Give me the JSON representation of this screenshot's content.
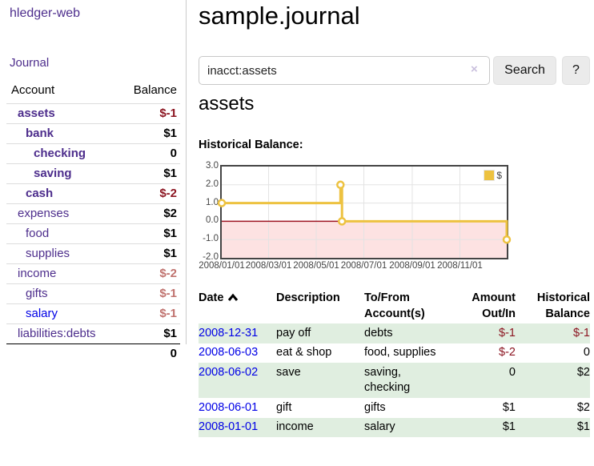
{
  "app": {
    "title": "hledger-web"
  },
  "sidebar": {
    "journal_link": "Journal",
    "accounts": {
      "header_account": "Account",
      "header_balance": "Balance",
      "rows": [
        {
          "name": "assets",
          "balance": "$-1",
          "indent": 0,
          "bold": true,
          "tone": "neg-strong",
          "link": "purple"
        },
        {
          "name": "bank",
          "balance": "$1",
          "indent": 1,
          "bold": true,
          "tone": null,
          "link": "purple"
        },
        {
          "name": "checking",
          "balance": "0",
          "indent": 2,
          "bold": true,
          "tone": null,
          "link": "purple"
        },
        {
          "name": "saving",
          "balance": "$1",
          "indent": 2,
          "bold": true,
          "tone": null,
          "link": "purple"
        },
        {
          "name": "cash",
          "balance": "$-2",
          "indent": 1,
          "bold": true,
          "tone": "neg-strong",
          "link": "purple"
        },
        {
          "name": "expenses",
          "balance": "$2",
          "indent": 0,
          "bold": false,
          "tone": null,
          "link": "purple"
        },
        {
          "name": "food",
          "balance": "$1",
          "indent": 1,
          "bold": false,
          "tone": null,
          "link": "purple"
        },
        {
          "name": "supplies",
          "balance": "$1",
          "indent": 1,
          "bold": false,
          "tone": null,
          "link": "purple"
        },
        {
          "name": "income",
          "balance": "$-2",
          "indent": 0,
          "bold": false,
          "tone": "neg-muted",
          "link": "purple"
        },
        {
          "name": "gifts",
          "balance": "$-1",
          "indent": 1,
          "bold": false,
          "tone": "neg-muted",
          "link": "purple"
        },
        {
          "name": "salary",
          "balance": "$-1",
          "indent": 1,
          "bold": false,
          "tone": "neg-muted",
          "link": "blue"
        },
        {
          "name": "liabilities:debts",
          "balance": "$1",
          "indent": 0,
          "bold": false,
          "tone": null,
          "link": "purple"
        }
      ],
      "total": "0"
    }
  },
  "main": {
    "title": "sample.journal",
    "search": {
      "value": "inacct:assets",
      "clear_icon": "×",
      "search_button": "Search",
      "help_button": "?"
    },
    "heading": "assets",
    "chart_title": "Historical Balance:"
  },
  "chart_data": {
    "type": "line",
    "step": true,
    "title": "Historical Balance",
    "xlabel": "",
    "ylabel": "",
    "x_domain": [
      "2008-01-01",
      "2008-12-31"
    ],
    "ylim": [
      -2,
      3
    ],
    "grid": true,
    "legend_position": "top-right",
    "negative_region_color": "#fde2e2",
    "zero_line_color": "#9e1522",
    "y_ticks": [
      {
        "v": 3,
        "label": "3.0"
      },
      {
        "v": 2,
        "label": "2.0"
      },
      {
        "v": 1,
        "label": "1.0"
      },
      {
        "v": 0,
        "label": "0.0"
      },
      {
        "v": -1,
        "label": "-1.0"
      },
      {
        "v": -2,
        "label": "-2.0"
      }
    ],
    "x_ticks": [
      {
        "date": "2008-01-01",
        "label": "2008/01/01"
      },
      {
        "date": "2008-03-01",
        "label": "2008/03/01"
      },
      {
        "date": "2008-05-01",
        "label": "2008/05/01"
      },
      {
        "date": "2008-07-01",
        "label": "2008/07/01"
      },
      {
        "date": "2008-09-01",
        "label": "2008/09/01"
      },
      {
        "date": "2008-11-01",
        "label": "2008/11/01"
      }
    ],
    "series": [
      {
        "name": "$",
        "color": "#edc240",
        "points": [
          {
            "date": "2008-01-01",
            "value": 1
          },
          {
            "date": "2008-06-01",
            "value": 2
          },
          {
            "date": "2008-06-03",
            "value": 0
          },
          {
            "date": "2008-12-31",
            "value": -1
          }
        ]
      }
    ]
  },
  "register": {
    "sort": {
      "column": "Date",
      "direction": "ascending"
    },
    "columns": [
      {
        "line1": "Date",
        "line2": ""
      },
      {
        "line1": "Description",
        "line2": ""
      },
      {
        "line1": "To/From",
        "line2": "Account(s)"
      },
      {
        "line1": "Amount",
        "line2": "Out/In"
      },
      {
        "line1": "Historical",
        "line2": "Balance"
      }
    ],
    "rows": [
      {
        "date": "2008-12-31",
        "description": "pay off",
        "accounts": "debts",
        "amount": "$-1",
        "balance": "$-1",
        "amount_negative": true,
        "balance_negative": true,
        "shaded": true
      },
      {
        "date": "2008-06-03",
        "description": "eat & shop",
        "accounts": "food, supplies",
        "amount": "$-2",
        "balance": "0",
        "amount_negative": true,
        "balance_negative": false,
        "shaded": false
      },
      {
        "date": "2008-06-02",
        "description": "save",
        "accounts": "saving,\nchecking",
        "amount": "0",
        "balance": "$2",
        "amount_negative": false,
        "balance_negative": false,
        "shaded": true
      },
      {
        "date": "2008-06-01",
        "description": "gift",
        "accounts": "gifts",
        "amount": "$1",
        "balance": "$2",
        "amount_negative": false,
        "balance_negative": false,
        "shaded": false
      },
      {
        "date": "2008-01-01",
        "description": "income",
        "accounts": "salary",
        "amount": "$1",
        "balance": "$1",
        "amount_negative": false,
        "balance_negative": false,
        "shaded": true
      }
    ]
  },
  "colors": {
    "link_purple": "#4d2d8c",
    "link_blue": "#0000e6",
    "negative_strong": "#8c1622",
    "negative_muted": "#c0736f",
    "row_shade_green": "#e0eee0",
    "chart_series_yellow": "#edc240",
    "chart_negative_region": "#fde2e2",
    "chart_zero_line": "#9e1522",
    "chart_grid": "#e3e3e3",
    "chart_border": "#444444"
  }
}
